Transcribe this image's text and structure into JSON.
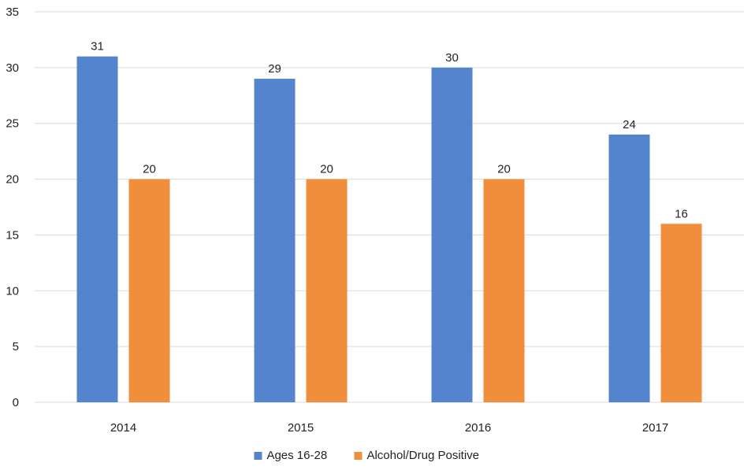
{
  "chart_data": {
    "type": "bar",
    "categories": [
      "2014",
      "2015",
      "2016",
      "2017"
    ],
    "series": [
      {
        "name": "Ages 16-28",
        "values": [
          31,
          29,
          30,
          24
        ],
        "color": "#5584CF"
      },
      {
        "name": "Alcohol/Drug Positive",
        "values": [
          20,
          20,
          20,
          16
        ],
        "color": "#F18E3C"
      }
    ],
    "title": "",
    "xlabel": "",
    "ylabel": "",
    "ylim": [
      0,
      35
    ],
    "yticks": [
      0,
      5,
      10,
      15,
      20,
      25,
      30,
      35
    ],
    "grid": true,
    "legend": "bottom",
    "data_labels": true,
    "gridline_color": "#D9D9D9"
  }
}
